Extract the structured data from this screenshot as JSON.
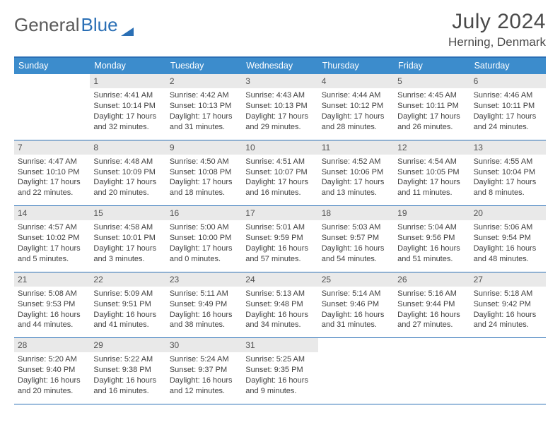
{
  "logo": {
    "text1": "General",
    "text2": "Blue"
  },
  "title": "July 2024",
  "location": "Herning, Denmark",
  "weekdays": [
    "Sunday",
    "Monday",
    "Tuesday",
    "Wednesday",
    "Thursday",
    "Friday",
    "Saturday"
  ],
  "colors": {
    "headerBar": "#3c8ccc",
    "borderBlue": "#2a6fb5",
    "dayNumBg": "#e9e9e9",
    "text": "#404040"
  },
  "weeks": [
    [
      {
        "n": "",
        "lines": []
      },
      {
        "n": "1",
        "lines": [
          "Sunrise: 4:41 AM",
          "Sunset: 10:14 PM",
          "Daylight: 17 hours",
          "and 32 minutes."
        ]
      },
      {
        "n": "2",
        "lines": [
          "Sunrise: 4:42 AM",
          "Sunset: 10:13 PM",
          "Daylight: 17 hours",
          "and 31 minutes."
        ]
      },
      {
        "n": "3",
        "lines": [
          "Sunrise: 4:43 AM",
          "Sunset: 10:13 PM",
          "Daylight: 17 hours",
          "and 29 minutes."
        ]
      },
      {
        "n": "4",
        "lines": [
          "Sunrise: 4:44 AM",
          "Sunset: 10:12 PM",
          "Daylight: 17 hours",
          "and 28 minutes."
        ]
      },
      {
        "n": "5",
        "lines": [
          "Sunrise: 4:45 AM",
          "Sunset: 10:11 PM",
          "Daylight: 17 hours",
          "and 26 minutes."
        ]
      },
      {
        "n": "6",
        "lines": [
          "Sunrise: 4:46 AM",
          "Sunset: 10:11 PM",
          "Daylight: 17 hours",
          "and 24 minutes."
        ]
      }
    ],
    [
      {
        "n": "7",
        "lines": [
          "Sunrise: 4:47 AM",
          "Sunset: 10:10 PM",
          "Daylight: 17 hours",
          "and 22 minutes."
        ]
      },
      {
        "n": "8",
        "lines": [
          "Sunrise: 4:48 AM",
          "Sunset: 10:09 PM",
          "Daylight: 17 hours",
          "and 20 minutes."
        ]
      },
      {
        "n": "9",
        "lines": [
          "Sunrise: 4:50 AM",
          "Sunset: 10:08 PM",
          "Daylight: 17 hours",
          "and 18 minutes."
        ]
      },
      {
        "n": "10",
        "lines": [
          "Sunrise: 4:51 AM",
          "Sunset: 10:07 PM",
          "Daylight: 17 hours",
          "and 16 minutes."
        ]
      },
      {
        "n": "11",
        "lines": [
          "Sunrise: 4:52 AM",
          "Sunset: 10:06 PM",
          "Daylight: 17 hours",
          "and 13 minutes."
        ]
      },
      {
        "n": "12",
        "lines": [
          "Sunrise: 4:54 AM",
          "Sunset: 10:05 PM",
          "Daylight: 17 hours",
          "and 11 minutes."
        ]
      },
      {
        "n": "13",
        "lines": [
          "Sunrise: 4:55 AM",
          "Sunset: 10:04 PM",
          "Daylight: 17 hours",
          "and 8 minutes."
        ]
      }
    ],
    [
      {
        "n": "14",
        "lines": [
          "Sunrise: 4:57 AM",
          "Sunset: 10:02 PM",
          "Daylight: 17 hours",
          "and 5 minutes."
        ]
      },
      {
        "n": "15",
        "lines": [
          "Sunrise: 4:58 AM",
          "Sunset: 10:01 PM",
          "Daylight: 17 hours",
          "and 3 minutes."
        ]
      },
      {
        "n": "16",
        "lines": [
          "Sunrise: 5:00 AM",
          "Sunset: 10:00 PM",
          "Daylight: 17 hours",
          "and 0 minutes."
        ]
      },
      {
        "n": "17",
        "lines": [
          "Sunrise: 5:01 AM",
          "Sunset: 9:59 PM",
          "Daylight: 16 hours",
          "and 57 minutes."
        ]
      },
      {
        "n": "18",
        "lines": [
          "Sunrise: 5:03 AM",
          "Sunset: 9:57 PM",
          "Daylight: 16 hours",
          "and 54 minutes."
        ]
      },
      {
        "n": "19",
        "lines": [
          "Sunrise: 5:04 AM",
          "Sunset: 9:56 PM",
          "Daylight: 16 hours",
          "and 51 minutes."
        ]
      },
      {
        "n": "20",
        "lines": [
          "Sunrise: 5:06 AM",
          "Sunset: 9:54 PM",
          "Daylight: 16 hours",
          "and 48 minutes."
        ]
      }
    ],
    [
      {
        "n": "21",
        "lines": [
          "Sunrise: 5:08 AM",
          "Sunset: 9:53 PM",
          "Daylight: 16 hours",
          "and 44 minutes."
        ]
      },
      {
        "n": "22",
        "lines": [
          "Sunrise: 5:09 AM",
          "Sunset: 9:51 PM",
          "Daylight: 16 hours",
          "and 41 minutes."
        ]
      },
      {
        "n": "23",
        "lines": [
          "Sunrise: 5:11 AM",
          "Sunset: 9:49 PM",
          "Daylight: 16 hours",
          "and 38 minutes."
        ]
      },
      {
        "n": "24",
        "lines": [
          "Sunrise: 5:13 AM",
          "Sunset: 9:48 PM",
          "Daylight: 16 hours",
          "and 34 minutes."
        ]
      },
      {
        "n": "25",
        "lines": [
          "Sunrise: 5:14 AM",
          "Sunset: 9:46 PM",
          "Daylight: 16 hours",
          "and 31 minutes."
        ]
      },
      {
        "n": "26",
        "lines": [
          "Sunrise: 5:16 AM",
          "Sunset: 9:44 PM",
          "Daylight: 16 hours",
          "and 27 minutes."
        ]
      },
      {
        "n": "27",
        "lines": [
          "Sunrise: 5:18 AM",
          "Sunset: 9:42 PM",
          "Daylight: 16 hours",
          "and 24 minutes."
        ]
      }
    ],
    [
      {
        "n": "28",
        "lines": [
          "Sunrise: 5:20 AM",
          "Sunset: 9:40 PM",
          "Daylight: 16 hours",
          "and 20 minutes."
        ]
      },
      {
        "n": "29",
        "lines": [
          "Sunrise: 5:22 AM",
          "Sunset: 9:38 PM",
          "Daylight: 16 hours",
          "and 16 minutes."
        ]
      },
      {
        "n": "30",
        "lines": [
          "Sunrise: 5:24 AM",
          "Sunset: 9:37 PM",
          "Daylight: 16 hours",
          "and 12 minutes."
        ]
      },
      {
        "n": "31",
        "lines": [
          "Sunrise: 5:25 AM",
          "Sunset: 9:35 PM",
          "Daylight: 16 hours",
          "and 9 minutes."
        ]
      },
      {
        "n": "",
        "lines": []
      },
      {
        "n": "",
        "lines": []
      },
      {
        "n": "",
        "lines": []
      }
    ]
  ]
}
